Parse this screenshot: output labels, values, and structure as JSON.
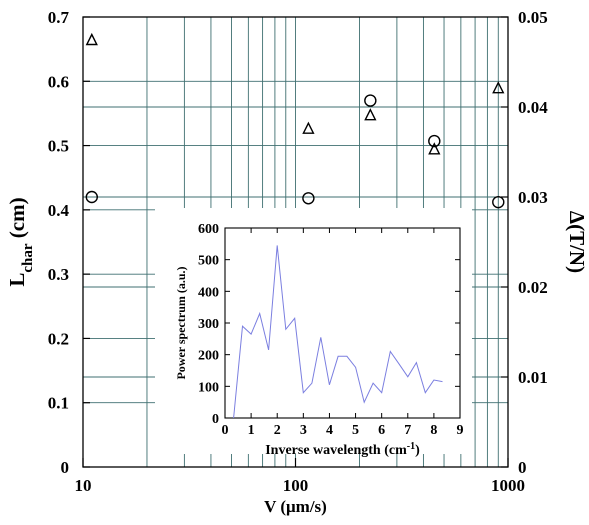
{
  "chart_data": [
    {
      "type": "scatter",
      "xlabel": "V (μm/s)",
      "ylabel": "L",
      "ylabel_sub": "char",
      "ylabel_unit": " (cm)",
      "y2label": "Δ(T/N)",
      "xscale": "log",
      "xlim": [
        10,
        1000
      ],
      "ylim": [
        0,
        0.7
      ],
      "y2lim": [
        0,
        0.05
      ],
      "grid": true,
      "xticks": [
        "10",
        "100",
        "1000"
      ],
      "yticks": [
        "0",
        "0.1",
        "0.2",
        "0.3",
        "0.4",
        "0.5",
        "0.6",
        "0.7"
      ],
      "y2ticks": [
        "0",
        "0.01",
        "0.02",
        "0.03",
        "0.04",
        "0.05"
      ],
      "series": [
        {
          "marker": "circle",
          "axis": "left",
          "points": [
            {
              "x": 11,
              "y": 0.42
            },
            {
              "x": 115,
              "y": 0.418
            },
            {
              "x": 225,
              "y": 0.57
            },
            {
              "x": 450,
              "y": 0.507
            },
            {
              "x": 900,
              "y": 0.412
            }
          ]
        },
        {
          "marker": "triangle",
          "axis": "left",
          "points": [
            {
              "x": 11,
              "y": 0.665
            },
            {
              "x": 115,
              "y": 0.527
            },
            {
              "x": 225,
              "y": 0.548
            },
            {
              "x": 450,
              "y": 0.495
            },
            {
              "x": 900,
              "y": 0.59
            }
          ]
        }
      ]
    },
    {
      "type": "line",
      "inset": true,
      "xlabel": "Inverse wavelength (cm",
      "xlabel_sup": "-1",
      "xlabel_end": ")",
      "ylabel": "Power spectrum (a.u.)",
      "xlim": [
        0,
        9
      ],
      "ylim": [
        0,
        600
      ],
      "xticks": [
        "0",
        "1",
        "2",
        "3",
        "4",
        "5",
        "6",
        "7",
        "8",
        "9"
      ],
      "yticks": [
        "0",
        "100",
        "200",
        "300",
        "400",
        "500",
        "600"
      ],
      "color": "#7b7fe0",
      "series": [
        {
          "x": [
            0.33,
            0.67,
            1.0,
            1.33,
            1.67,
            2.0,
            2.33,
            2.67,
            3.0,
            3.33,
            3.67,
            4.0,
            4.33,
            4.67,
            5.0,
            5.33,
            5.67,
            6.0,
            6.33,
            6.67,
            7.0,
            7.33,
            7.67,
            8.0,
            8.33
          ],
          "y": [
            0,
            290,
            265,
            330,
            215,
            545,
            280,
            315,
            80,
            110,
            255,
            105,
            195,
            195,
            160,
            50,
            110,
            80,
            210,
            170,
            130,
            175,
            80,
            120,
            115
          ]
        }
      ]
    }
  ]
}
